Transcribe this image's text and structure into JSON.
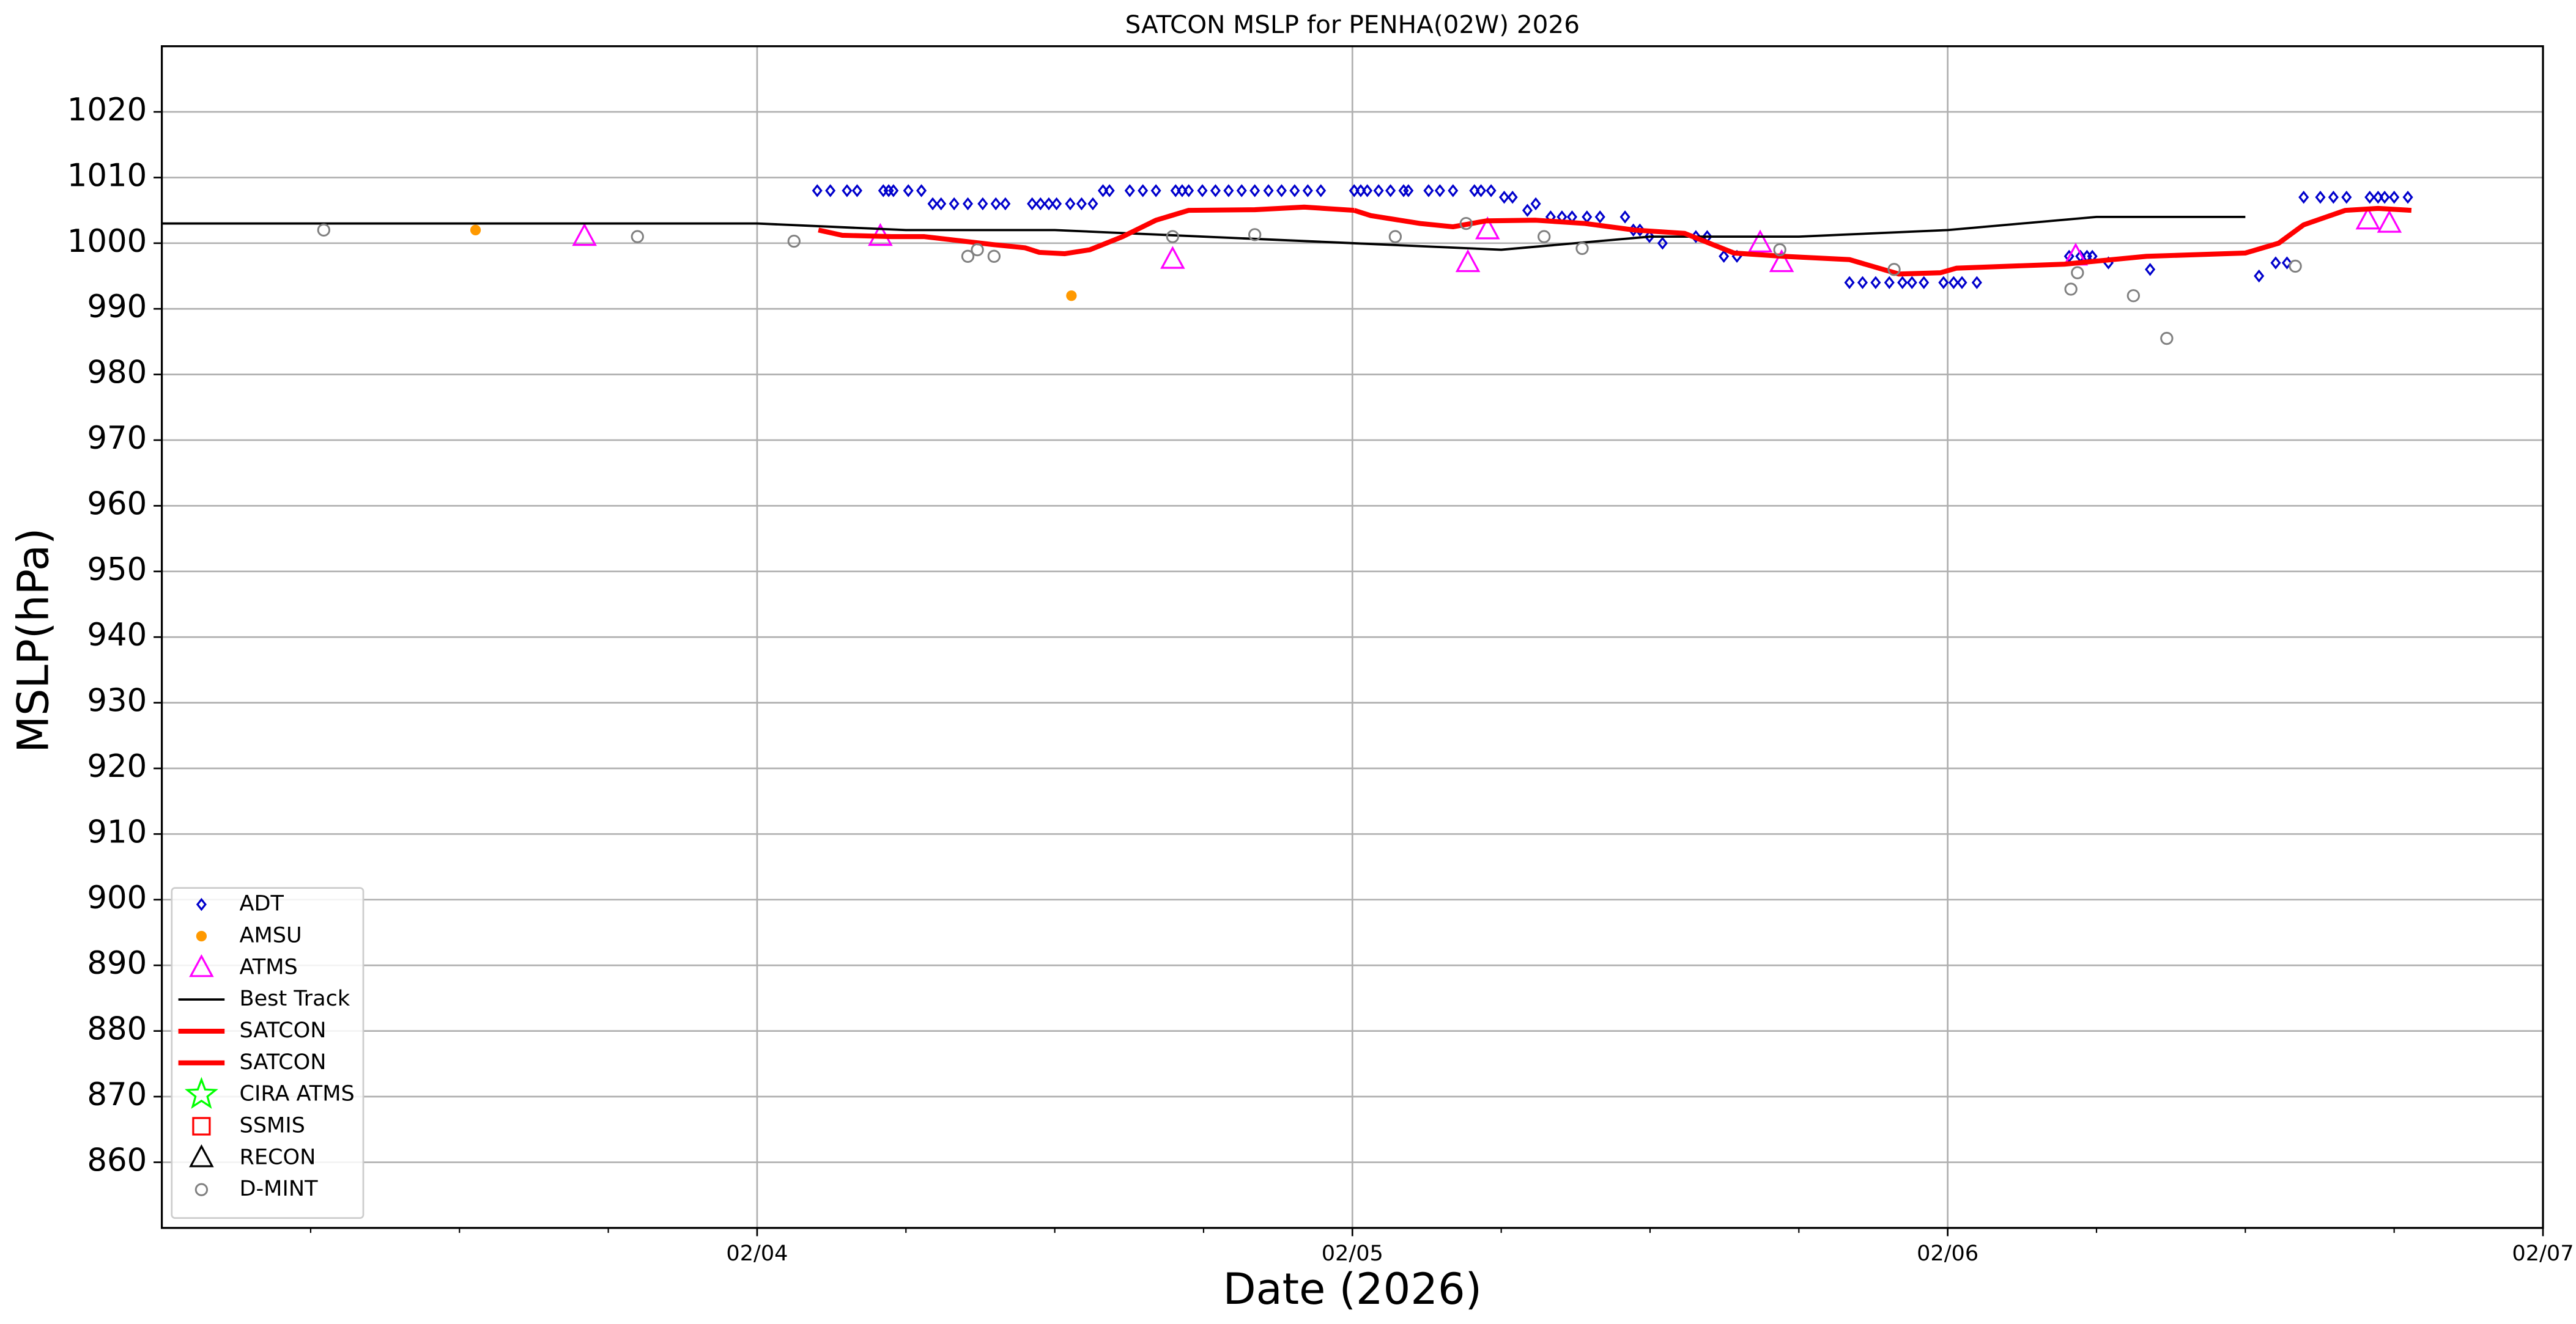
{
  "chart_data": {
    "type": "scatter",
    "title": "SATCON MSLP for PENHA(02W) 2026",
    "xlabel": "Date (2026)",
    "ylabel": "MSLP(hPa)",
    "xlim": [
      3,
      7
    ],
    "xticks": [
      {
        "value": 4,
        "label": "02/04"
      },
      {
        "value": 5,
        "label": "02/05"
      },
      {
        "value": 6,
        "label": "02/06"
      },
      {
        "value": 7,
        "label": "02/07"
      }
    ],
    "xminorticks": [
      3.25,
      3.5,
      3.75,
      4.25,
      4.5,
      4.75,
      5.25,
      5.5,
      5.75,
      6.25,
      6.5,
      6.75
    ],
    "ylim": [
      850,
      1030
    ],
    "yticks": [
      860,
      870,
      880,
      890,
      900,
      910,
      920,
      930,
      940,
      950,
      960,
      970,
      980,
      990,
      1000,
      1010,
      1020
    ],
    "grid": true,
    "legend": "lower left",
    "series": [
      {
        "name": "ADT",
        "color": "#0000cc",
        "marker": "diamond",
        "x": [
          4.101,
          4.123,
          4.151,
          4.168,
          4.212,
          4.221,
          4.229,
          4.254,
          4.276,
          4.295,
          4.309,
          4.331,
          4.354,
          4.379,
          4.401,
          4.417,
          4.462,
          4.476,
          4.49,
          4.503,
          4.526,
          4.545,
          4.564,
          4.581,
          4.592,
          4.626,
          4.648,
          4.67,
          4.703,
          4.714,
          4.725,
          4.748,
          4.77,
          4.792,
          4.814,
          4.836,
          4.859,
          4.881,
          4.903,
          4.925,
          4.947,
          5.003,
          5.014,
          5.025,
          5.044,
          5.064,
          5.086,
          5.094,
          5.128,
          5.147,
          5.169,
          5.205,
          5.216,
          5.233,
          5.255,
          5.269,
          5.294,
          5.308,
          5.333,
          5.352,
          5.369,
          5.394,
          5.416,
          5.458,
          5.472,
          5.483,
          5.499,
          5.521,
          5.577,
          5.596,
          5.624,
          5.646,
          5.835,
          5.857,
          5.879,
          5.902,
          5.924,
          5.94,
          5.96,
          5.993,
          6.01,
          6.024,
          6.049,
          6.204,
          6.223,
          6.234,
          6.243,
          6.27,
          6.34,
          6.523,
          6.551,
          6.57,
          6.598,
          6.626,
          6.648,
          6.67,
          6.709,
          6.723,
          6.734,
          6.75,
          6.773
        ],
        "values": [
          1008,
          1008,
          1008,
          1008,
          1008,
          1008,
          1008,
          1008,
          1008,
          1006,
          1006,
          1006,
          1006,
          1006,
          1006,
          1006,
          1006,
          1006,
          1006,
          1006,
          1006,
          1006,
          1006,
          1008,
          1008,
          1008,
          1008,
          1008,
          1008,
          1008,
          1008,
          1008,
          1008,
          1008,
          1008,
          1008,
          1008,
          1008,
          1008,
          1008,
          1008,
          1008,
          1008,
          1008,
          1008,
          1008,
          1008,
          1008,
          1008,
          1008,
          1008,
          1008,
          1008,
          1008,
          1007,
          1007,
          1005,
          1006,
          1004,
          1004,
          1004,
          1004,
          1004,
          1004,
          1002,
          1002,
          1001,
          1000,
          1001,
          1001,
          998,
          998,
          994,
          994,
          994,
          994,
          994,
          994,
          994,
          994,
          994,
          994,
          994,
          998,
          998,
          998,
          998,
          997,
          996,
          995,
          997,
          997,
          1007,
          1007,
          1007,
          1007,
          1007,
          1007,
          1007,
          1007,
          1007
        ]
      },
      {
        "name": "AMSU",
        "color": "#ff9900",
        "marker": "dot",
        "x": [
          3.527,
          4.528
        ],
        "values": [
          1002,
          992
        ]
      },
      {
        "name": "ATMS",
        "color": "#ff00ff",
        "marker": "triangle",
        "x": [
          3.71,
          4.207,
          4.698,
          5.194,
          5.227,
          5.685,
          5.721,
          6.215,
          6.706,
          6.742
        ],
        "values": [
          1001,
          1001,
          997.5,
          997,
          1002,
          1000,
          997,
          998,
          1003.5,
          1003
        ]
      },
      {
        "name": "Best Track",
        "color": "#000000",
        "marker": "line",
        "width": 1.4,
        "x": [
          3.0,
          3.25,
          3.5,
          3.75,
          4.0,
          4.25,
          4.5,
          4.75,
          5.0,
          5.25,
          5.5,
          5.75,
          6.0,
          6.25,
          6.5
        ],
        "values": [
          1003,
          1003,
          1003,
          1003,
          1003,
          1002,
          1002,
          1001,
          1000,
          999,
          1001,
          1001,
          1002,
          1004,
          1004
        ]
      },
      {
        "name": "SATCON",
        "color": "#ff0000",
        "marker": "line",
        "width": 3,
        "x": [
          4.103,
          4.143,
          4.226,
          4.281,
          4.395,
          4.45,
          4.474,
          4.517,
          4.559,
          4.614,
          4.67,
          4.725,
          4.836,
          4.919,
          5.003
        ],
        "values": [
          1002,
          1001.2,
          1001,
          1001,
          999.8,
          999.3,
          998.6,
          998.4,
          999,
          1001,
          1003.5,
          1005,
          1005.1,
          1005.5,
          1005
        ]
      },
      {
        "name": "SATCON",
        "color": "#ff0000",
        "marker": "line",
        "width": 3,
        "x": [
          5.003,
          5.031,
          5.114,
          5.169,
          5.225,
          5.308,
          5.391,
          5.474,
          5.558,
          5.641,
          5.724,
          5.835,
          5.918,
          5.988,
          6.015,
          6.196,
          6.334,
          6.5,
          6.556,
          6.598,
          6.668,
          6.723,
          6.779
        ],
        "values": [
          1005,
          1004.2,
          1003,
          1002.5,
          1003.4,
          1003.5,
          1003,
          1002,
          1001.5,
          998.5,
          998,
          997.5,
          995.3,
          995.5,
          996.2,
          996.8,
          998,
          998.5,
          1000,
          1002.8,
          1005,
          1005.3,
          1005
        ]
      },
      {
        "name": "CIRA ATMS",
        "color": "#00ff00",
        "marker": "star",
        "x": [],
        "values": []
      },
      {
        "name": "SSMIS",
        "color": "#ff0000",
        "marker": "square",
        "x": [],
        "values": []
      },
      {
        "name": "RECON",
        "color": "#000000",
        "marker": "triangle",
        "x": [],
        "values": []
      },
      {
        "name": "D-MINT",
        "color": "#808080",
        "marker": "circle",
        "x": [
          3.272,
          3.799,
          4.062,
          4.354,
          4.37,
          4.398,
          4.698,
          4.836,
          5.072,
          5.191,
          5.322,
          5.386,
          5.718,
          5.91,
          6.207,
          6.218,
          6.312,
          6.368,
          6.584
        ],
        "values": [
          1002,
          1001,
          1000.3,
          998,
          999,
          998,
          1001,
          1001.3,
          1001,
          1003,
          1001,
          999.2,
          999,
          996,
          993,
          995.5,
          992,
          985.5,
          996.5
        ]
      }
    ]
  }
}
